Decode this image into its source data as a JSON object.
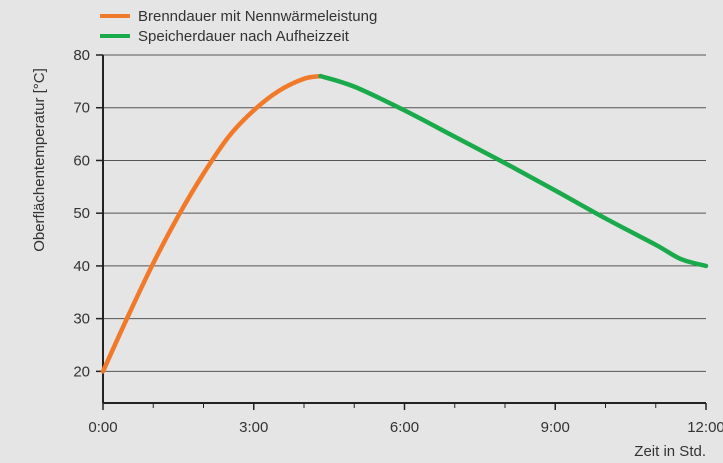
{
  "chart_data": {
    "type": "line",
    "title": "",
    "xlabel": "Zeit in Std.",
    "ylabel": "Oberflächentemperatur [°C]",
    "xlim": [
      0,
      12
    ],
    "ylim": [
      14,
      80
    ],
    "x_ticks": [
      {
        "value": 0,
        "label": "0:00"
      },
      {
        "value": 3,
        "label": "3:00"
      },
      {
        "value": 6,
        "label": "6:00"
      },
      {
        "value": 9,
        "label": "9:00"
      },
      {
        "value": 12,
        "label": "12:00"
      }
    ],
    "x_minor_ticks": [
      1,
      2,
      4,
      5,
      7,
      8,
      10,
      11
    ],
    "y_ticks": [
      20,
      30,
      40,
      50,
      60,
      70,
      80
    ],
    "grid": "horizontal",
    "legend": "top-left",
    "series": [
      {
        "name": "Brenndauer mit Nennwärmeleistung",
        "color": "#f07a2a",
        "x": [
          0,
          0.5,
          1.0,
          1.5,
          2.0,
          2.5,
          3.0,
          3.5,
          4.0,
          4.33
        ],
        "y": [
          20,
          30.5,
          40.5,
          49.5,
          57.5,
          64.5,
          69.5,
          73.2,
          75.5,
          76
        ]
      },
      {
        "name": "Speicherdauer nach Aufheizzeit",
        "color": "#1aaa4b",
        "x": [
          4.33,
          5.0,
          6.0,
          7.0,
          8.0,
          9.0,
          10.0,
          11.0,
          11.5,
          12.0
        ],
        "y": [
          76,
          74,
          69.5,
          64.5,
          59.5,
          54.3,
          49,
          44,
          41.3,
          40
        ]
      }
    ]
  }
}
